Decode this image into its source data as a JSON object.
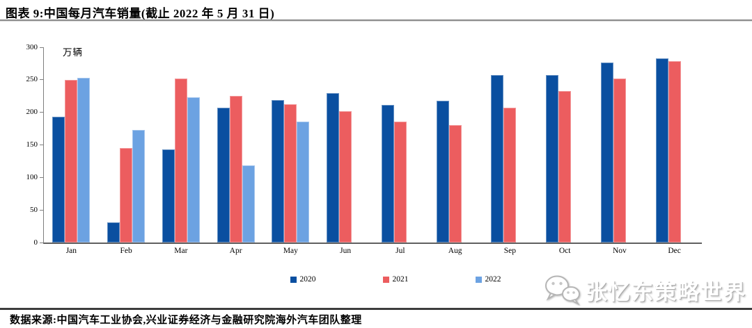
{
  "header": {
    "figure_title": "图表 9:中国每月汽车销量(截止 2022 年 5 月 31 日)"
  },
  "chart_data": {
    "type": "bar",
    "title": "中国每月汽车销量(截止 2022 年 5 月 31 日)",
    "unit_label": "万辆",
    "categories": [
      "Jan",
      "Feb",
      "Mar",
      "Apr",
      "May",
      "Jun",
      "Jul",
      "Aug",
      "Sep",
      "Oct",
      "Nov",
      "Dec"
    ],
    "series": [
      {
        "name": "2020",
        "color": "#0A4FA0",
        "values": [
          193,
          31,
          143,
          207,
          219,
          230,
          211,
          218,
          257,
          257,
          277,
          283
        ]
      },
      {
        "name": "2021",
        "color": "#EC5D5F",
        "values": [
          250,
          145,
          252,
          225,
          213,
          202,
          186,
          180,
          207,
          233,
          252,
          279
        ]
      },
      {
        "name": "2022",
        "color": "#6CA2E2",
        "values": [
          253,
          173,
          223,
          118,
          186,
          null,
          null,
          null,
          null,
          null,
          null,
          null
        ]
      }
    ],
    "ylim": [
      0,
      300
    ],
    "yticks": [
      0,
      50,
      100,
      150,
      200,
      250,
      300
    ],
    "xlabel": "",
    "ylabel": "万辆",
    "legend_position": "bottom",
    "grid": false
  },
  "footer": {
    "source": "数据来源:中国汽车工业协会,兴业证券经济与金融研究院海外汽车团队整理"
  },
  "watermark": {
    "label": "张忆东策略世界",
    "icon": "wechat-icon"
  }
}
